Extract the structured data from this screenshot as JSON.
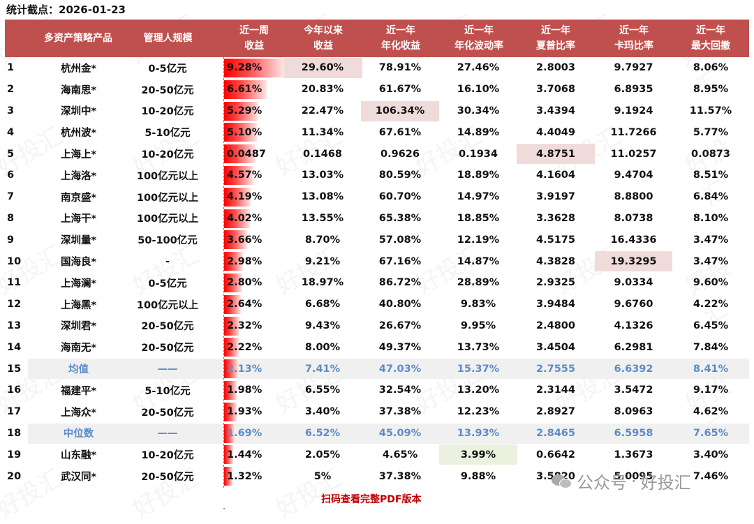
{
  "title": "统计截点：2026-01-23",
  "header": {
    "columns": [
      {
        "line1": "",
        "line2": "多资产策略产品"
      },
      {
        "line1": "",
        "line2": "管理人规模"
      },
      {
        "line1": "近一周",
        "line2": "收益"
      },
      {
        "line1": "今年以来",
        "line2": "收益"
      },
      {
        "line1": "近一年",
        "line2": "年化收益"
      },
      {
        "line1": "近一年",
        "line2": "年化波动率"
      },
      {
        "line1": "近一年",
        "line2": "夏普比率"
      },
      {
        "line1": "近一年",
        "line2": "卡玛比率"
      },
      {
        "line1": "近一年",
        "line2": "最大回撤"
      }
    ]
  },
  "rows": [
    {
      "no": "1",
      "name": "杭州金*",
      "scale": "0-5亿元",
      "week": "9.28%",
      "ytd": "29.60%",
      "ann": "78.91%",
      "vol": "27.46%",
      "sharpe": "2.8003",
      "calmar": "9.7927",
      "mdd": "8.06%"
    },
    {
      "no": "2",
      "name": "海南思*",
      "scale": "20-50亿元",
      "week": "6.61%",
      "ytd": "20.83%",
      "ann": "61.67%",
      "vol": "16.10%",
      "sharpe": "3.7068",
      "calmar": "6.8935",
      "mdd": "8.95%"
    },
    {
      "no": "3",
      "name": "深圳中*",
      "scale": "10-20亿元",
      "week": "5.29%",
      "ytd": "22.47%",
      "ann": "106.34%",
      "vol": "30.34%",
      "sharpe": "3.4394",
      "calmar": "9.1924",
      "mdd": "11.57%"
    },
    {
      "no": "4",
      "name": "杭州波*",
      "scale": "5-10亿元",
      "week": "5.10%",
      "ytd": "11.34%",
      "ann": "67.61%",
      "vol": "14.89%",
      "sharpe": "4.4049",
      "calmar": "11.7266",
      "mdd": "5.77%"
    },
    {
      "no": "5",
      "name": "上海上*",
      "scale": "10-20亿元",
      "week": "0.0487",
      "ytd": "0.1468",
      "ann": "0.9626",
      "vol": "0.1934",
      "sharpe": "4.8751",
      "calmar": "11.0257",
      "mdd": "0.0873"
    },
    {
      "no": "6",
      "name": "上海洛*",
      "scale": "100亿元以上",
      "week": "4.57%",
      "ytd": "13.03%",
      "ann": "80.59%",
      "vol": "18.89%",
      "sharpe": "4.1604",
      "calmar": "9.4704",
      "mdd": "8.51%"
    },
    {
      "no": "7",
      "name": "南京盛*",
      "scale": "100亿元以上",
      "week": "4.19%",
      "ytd": "13.08%",
      "ann": "60.70%",
      "vol": "14.97%",
      "sharpe": "3.9197",
      "calmar": "8.8800",
      "mdd": "6.84%"
    },
    {
      "no": "8",
      "name": "上海干*",
      "scale": "100亿元以上",
      "week": "4.02%",
      "ytd": "13.55%",
      "ann": "65.38%",
      "vol": "18.85%",
      "sharpe": "3.3628",
      "calmar": "8.0738",
      "mdd": "8.10%"
    },
    {
      "no": "9",
      "name": "深圳量*",
      "scale": "50-100亿元",
      "week": "3.66%",
      "ytd": "8.70%",
      "ann": "57.08%",
      "vol": "12.19%",
      "sharpe": "4.5175",
      "calmar": "16.4336",
      "mdd": "3.47%"
    },
    {
      "no": "10",
      "name": "国海良*",
      "scale": "-",
      "week": "2.98%",
      "ytd": "9.21%",
      "ann": "67.16%",
      "vol": "14.87%",
      "sharpe": "4.3828",
      "calmar": "19.3295",
      "mdd": "3.47%"
    },
    {
      "no": "11",
      "name": "上海澜*",
      "scale": "0-5亿元",
      "week": "2.80%",
      "ytd": "18.97%",
      "ann": "86.72%",
      "vol": "28.89%",
      "sharpe": "2.9325",
      "calmar": "9.0334",
      "mdd": "9.60%"
    },
    {
      "no": "12",
      "name": "上海黑*",
      "scale": "100亿元以上",
      "week": "2.64%",
      "ytd": "6.68%",
      "ann": "40.80%",
      "vol": "9.83%",
      "sharpe": "3.9484",
      "calmar": "9.6760",
      "mdd": "4.22%"
    },
    {
      "no": "13",
      "name": "深圳君*",
      "scale": "20-50亿元",
      "week": "2.32%",
      "ytd": "9.43%",
      "ann": "26.67%",
      "vol": "9.95%",
      "sharpe": "2.4800",
      "calmar": "4.1326",
      "mdd": "6.45%"
    },
    {
      "no": "14",
      "name": "海南无*",
      "scale": "20-50亿元",
      "week": "2.22%",
      "ytd": "8.00%",
      "ann": "49.37%",
      "vol": "13.73%",
      "sharpe": "3.4504",
      "calmar": "6.2981",
      "mdd": "7.84%"
    },
    {
      "no": "15",
      "name": "均值",
      "scale": "——",
      "week": "2.13%",
      "ytd": "7.41%",
      "ann": "47.03%",
      "vol": "15.37%",
      "sharpe": "2.7555",
      "calmar": "6.6392",
      "mdd": "8.41%"
    },
    {
      "no": "16",
      "name": "福建平*",
      "scale": "5-10亿元",
      "week": "1.98%",
      "ytd": "6.55%",
      "ann": "32.54%",
      "vol": "13.20%",
      "sharpe": "2.3144",
      "calmar": "3.5472",
      "mdd": "9.17%"
    },
    {
      "no": "17",
      "name": "上海众*",
      "scale": "20-50亿元",
      "week": "1.93%",
      "ytd": "3.40%",
      "ann": "37.38%",
      "vol": "12.23%",
      "sharpe": "2.8927",
      "calmar": "8.0963",
      "mdd": "4.62%"
    },
    {
      "no": "18",
      "name": "中位数",
      "scale": "——",
      "week": "1.69%",
      "ytd": "6.52%",
      "ann": "45.09%",
      "vol": "13.93%",
      "sharpe": "2.8465",
      "calmar": "6.5958",
      "mdd": "7.65%"
    },
    {
      "no": "19",
      "name": "山东融*",
      "scale": "10-20亿元",
      "week": "1.44%",
      "ytd": "2.05%",
      "ann": "4.65%",
      "vol": "3.99%",
      "sharpe": "0.6642",
      "calmar": "1.3673",
      "mdd": "3.40%"
    },
    {
      "no": "20",
      "name": "武汉同*",
      "scale": "20-50亿元",
      "week": "1.32%",
      "ytd": "5%",
      "ann": "37.38%",
      "vol": "9.88%",
      "sharpe": "3.5820",
      "calmar": "5.0095",
      "mdd": "7.46%"
    }
  ],
  "footer": "扫码查看完整PDF版本",
  "brand": {
    "prefix": "公众号",
    "sep": "·",
    "name": "好投汇"
  },
  "watermark": "好投汇",
  "colors": {
    "header_bg": "#c0504d",
    "bar": "#ff0000",
    "highlight_red": "#f0dbdb",
    "highlight_green": "#ebf1de",
    "stat_text": "#5b8cc7",
    "footer_text": "#c00000"
  }
}
